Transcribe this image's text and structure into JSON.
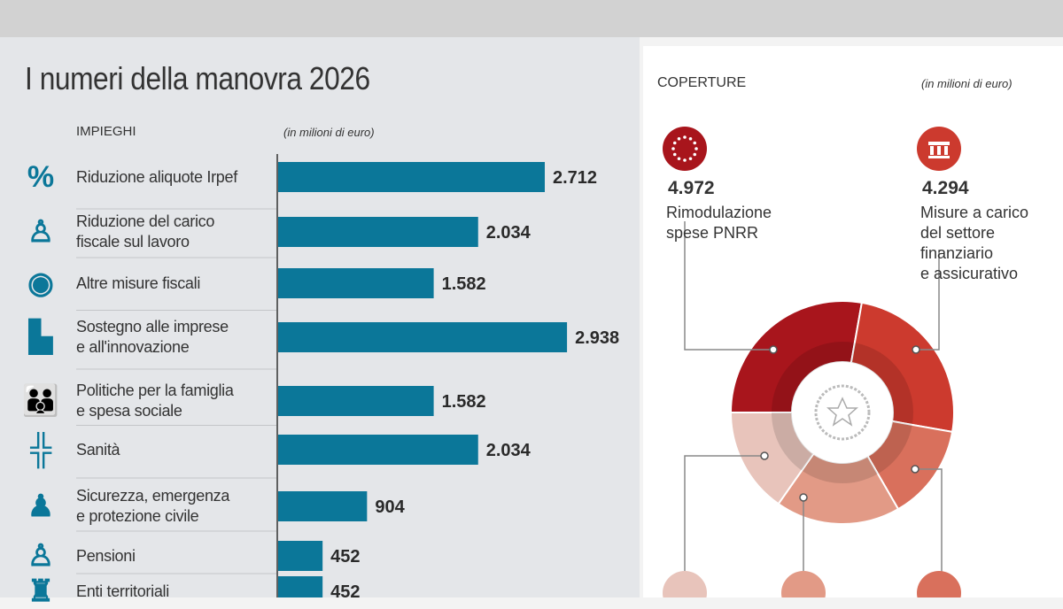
{
  "title": "I numeri della manovra 2026",
  "impieghi": {
    "header": "IMPIEGHI",
    "unit": "(in milioni di euro)"
  },
  "coperture": {
    "header": "COPERTURE",
    "unit": "(in milioni di euro)",
    "items": [
      {
        "value": "4.972",
        "label_lines": [
          "Rimodulazione",
          "spese PNRR"
        ],
        "icon": "eu-stars-icon",
        "color": "#a8151c"
      },
      {
        "value": "4.294",
        "label_lines": [
          "Misure a carico",
          "del settore",
          "finanziario",
          "e assicurativo"
        ],
        "icon": "bank-icon",
        "color": "#cc3a2e"
      }
    ]
  },
  "chart_data": [
    {
      "type": "bar",
      "orientation": "horizontal",
      "title": "IMPIEGHI",
      "unit": "(in milioni di euro)",
      "color": "#0b7799",
      "categories": [
        [
          "Riduzione aliquote Irpef"
        ],
        [
          "Riduzione del carico",
          "fiscale sul lavoro"
        ],
        [
          "Altre misure fiscali"
        ],
        [
          "Sostegno alle imprese",
          "e all'innovazione"
        ],
        [
          "Politiche per la famiglia",
          "e spesa sociale"
        ],
        [
          "Sanità"
        ],
        [
          "Sicurezza, emergenza",
          "e protezione civile"
        ],
        [
          "Pensioni"
        ],
        [
          "Enti territoriali"
        ]
      ],
      "icons": [
        "percent-icon",
        "office-worker-icon",
        "banknote-icon",
        "factory-icon",
        "family-icon",
        "health-cross-icon",
        "police-officer-icon",
        "elderly-person-icon",
        "castle-tower-icon"
      ],
      "values": [
        2712,
        2034,
        1582,
        2938,
        1582,
        2034,
        904,
        452,
        452
      ],
      "value_labels": [
        "2.712",
        "2.034",
        "1.582",
        "2.938",
        "1.582",
        "2.034",
        "904",
        "452",
        "452"
      ]
    },
    {
      "type": "pie",
      "style": "donut",
      "title": "COPERTURE",
      "slices": [
        {
          "label": "Rimodulazione spese PNRR",
          "value": 4972,
          "color": "#a8151c"
        },
        {
          "label": "Misure a carico del settore finanziario e assicurativo",
          "value": 4294,
          "color": "#cc3a2e"
        },
        {
          "label": "",
          "share_est": 0.14,
          "color": "#d9705c"
        },
        {
          "label": "",
          "share_est": 0.18,
          "color": "#e29a86"
        },
        {
          "label": "",
          "share_est": 0.15,
          "color": "#e8c4bb"
        }
      ]
    }
  ]
}
